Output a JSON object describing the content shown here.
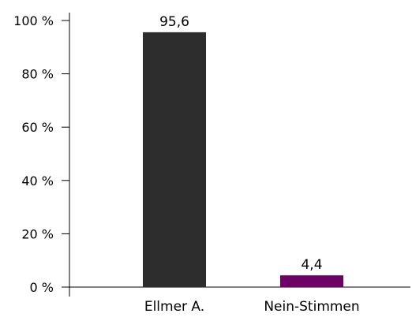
{
  "chart_data": {
    "type": "bar",
    "categories": [
      "Ellmer A.",
      "Nein-Stimmen"
    ],
    "values": [
      95.6,
      4.4
    ],
    "data_labels": [
      "95,6",
      "4,4"
    ],
    "colors": [
      "#2d2d2d",
      "#6e0068"
    ],
    "y_ticks": [
      0,
      20,
      40,
      60,
      80,
      100
    ],
    "y_tick_labels": [
      "0 %",
      "20 %",
      "40 %",
      "60 %",
      "80 %",
      "100 %"
    ],
    "ylim": [
      0,
      100
    ],
    "grid": false
  }
}
